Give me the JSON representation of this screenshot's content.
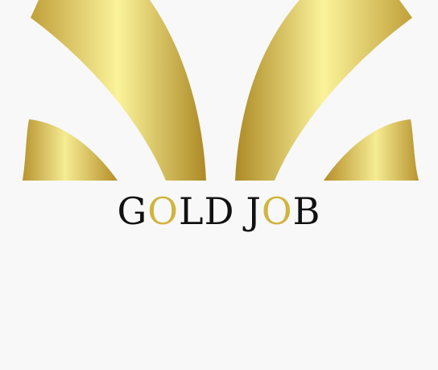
{
  "logo": {
    "word1": {
      "c1": "G",
      "c2": "O",
      "c3": "L",
      "c4": "D"
    },
    "word2": {
      "c1": "J",
      "c2": "O",
      "c3": "B"
    }
  },
  "colors": {
    "background": "#f8f8f8",
    "text_dark": "#111111",
    "text_gold": "#d1b43e",
    "gold_dark": "#b48e28",
    "gold_light": "#fbf39a"
  }
}
